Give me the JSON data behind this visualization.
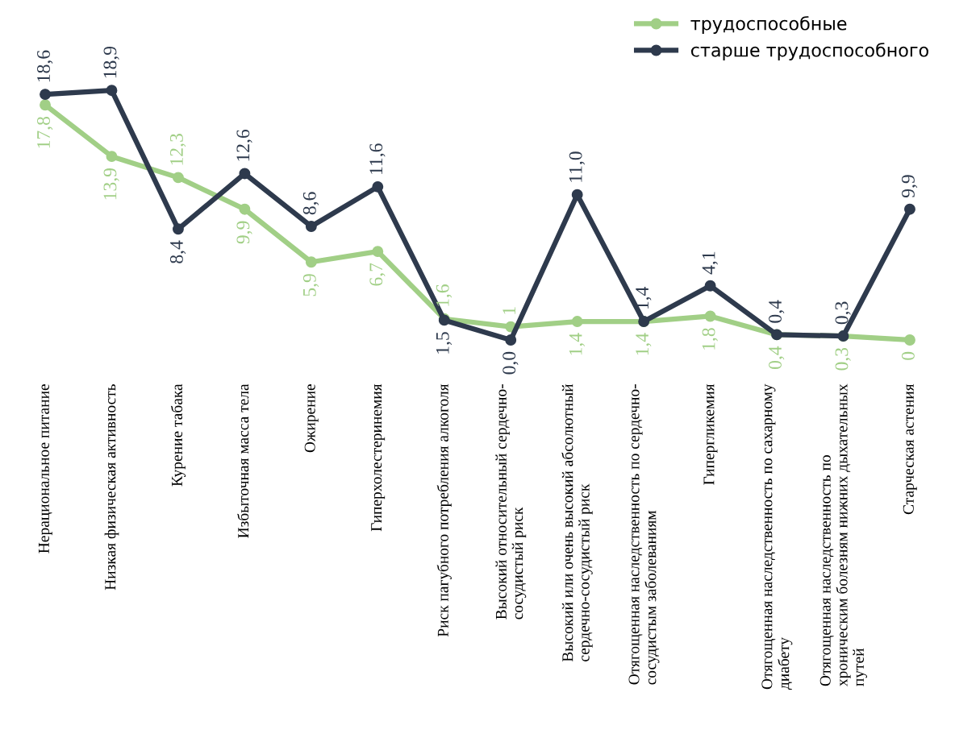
{
  "chart_data": {
    "type": "line",
    "categories": [
      "Нерациональное питание",
      "Низкая физическая активность",
      "Курение табака",
      "Избыточная масса тела",
      "Ожирение",
      "Гиперхолестеринемия",
      "Риск пагубного потребления алкоголя",
      "Высокий относительный сердечно-\nсосудистый риск",
      "Высокий или очень высокий абсолютный\nсердечно-сосудистый риск",
      "Отягощенная наследственность по сердечно-\nсосудистым заболеваниям",
      "Гипергликемия",
      "Отягощенная наследственность по сахарному\nдиабету",
      "Отягощенная наследственность по\nхроническим болезням нижних дыхательных\nпутей",
      "Старческая астения"
    ],
    "series": [
      {
        "name": "трудоспособные",
        "color": "#a1cf86",
        "values": [
          17.8,
          13.9,
          12.3,
          9.9,
          5.9,
          6.7,
          1.6,
          1,
          1.4,
          1.4,
          1.8,
          0.4,
          0.3,
          0
        ],
        "value_labels": [
          "17,8",
          "13,9",
          "12,3",
          "9,9",
          "5,9",
          "6,7",
          "1,6",
          "1",
          "1,4",
          "1,4",
          "1,8",
          "0,4",
          "0,3",
          "0"
        ]
      },
      {
        "name": "старше трудоспособного",
        "color": "#2e3a4d",
        "values": [
          18.6,
          18.9,
          8.4,
          12.6,
          8.6,
          11.6,
          1.5,
          0.0,
          11.0,
          1.4,
          4.1,
          0.4,
          0.3,
          9.9
        ],
        "value_labels": [
          "18,6",
          "18,9",
          "8,4",
          "12,6",
          "8,6",
          "11,6",
          "1,5",
          "0,0",
          "11,0",
          "1,4",
          "4,1",
          "0,4",
          "0,3",
          "9,9"
        ]
      }
    ],
    "marker": "circle",
    "line_style": "solid",
    "legend": "top right",
    "grid": false,
    "tick_labels": "x"
  }
}
